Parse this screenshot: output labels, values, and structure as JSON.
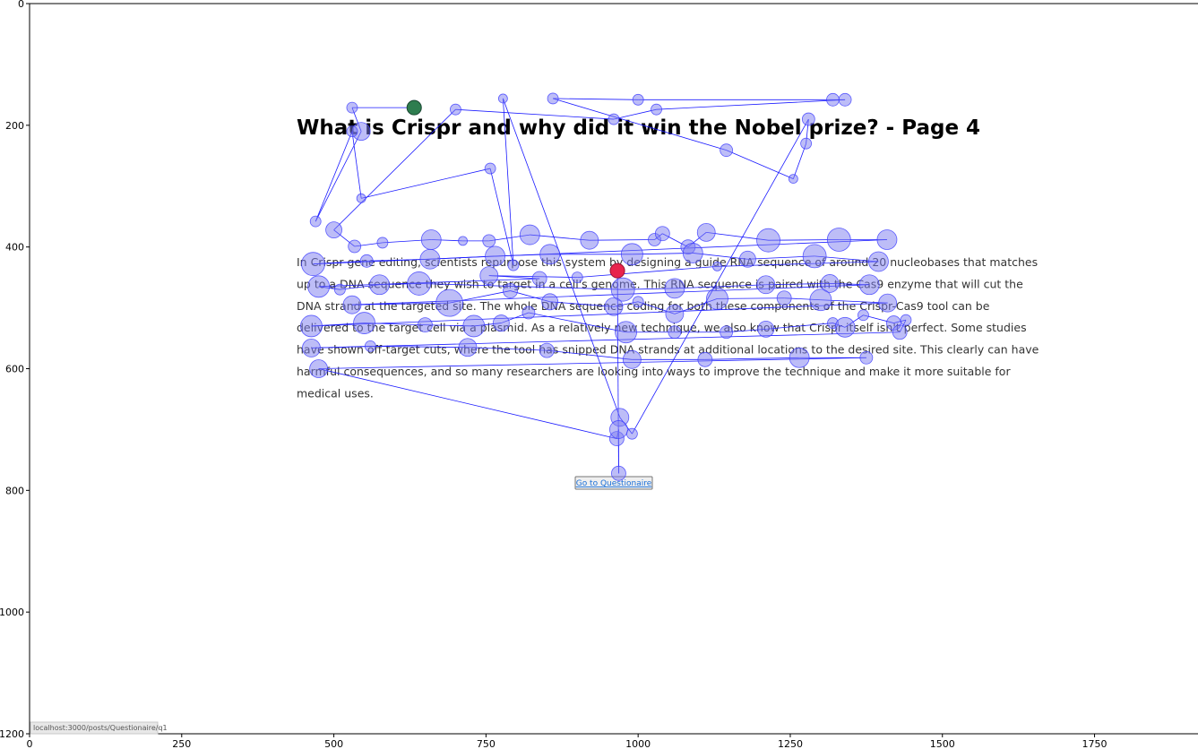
{
  "page": {
    "title": "What is Crispr and why did it win the Nobel prize? - Page 4",
    "paragraph": [
      "In Crispr gene editing, scientists repurpose this system by designing a guide RNA sequence of around 20 nucleobases that matches",
      "up to a DNA sequence they wish to target in a cell's genome. This RNA sequence is paired with the Cas9 enzyme that will cut the",
      "DNA strand at the targeted site. The whole DNA sequence coding for both these components of the Crispr-Cas9 tool can be",
      "delivered to the target cell via a plasmid. As a relatively new technique, we also know that Crispr itself isn't perfect. Some studies",
      "have shown off-target cuts, where the tool has snipped DNA strands at additional locations to the desired site. This clearly can have",
      "harmful consequences, and so many researchers are looking into ways to improve the technique and make it more suitable for",
      "medical uses."
    ],
    "button_label": "Go to Questionaire",
    "status_url": "localhost:3000/posts/Questionaire/q1"
  },
  "colors": {
    "fixation_fill": "#7b7bef",
    "fixation_stroke": "#3a3aff",
    "scanpath": "#1a1aff",
    "start_point": "#2e7d4f",
    "end_point": "#e8244d"
  },
  "chart_data": {
    "type": "scatter",
    "title": "",
    "xlabel": "",
    "ylabel": "",
    "xlim": [
      0,
      1920
    ],
    "ylim": [
      1200,
      0
    ],
    "x_ticks": [
      0,
      250,
      500,
      750,
      1000,
      1250,
      1500,
      1750
    ],
    "y_ticks": [
      0,
      200,
      400,
      600,
      800,
      1000,
      1200
    ],
    "start_point": {
      "x": 632,
      "y": 171
    },
    "end_point": {
      "x": 966,
      "y": 439
    },
    "series": [
      {
        "points": [
          {
            "x": 632,
            "y": 171,
            "r": 8
          },
          {
            "x": 530,
            "y": 171,
            "r": 6
          },
          {
            "x": 545,
            "y": 210,
            "r": 10
          },
          {
            "x": 470,
            "y": 358,
            "r": 6
          },
          {
            "x": 530,
            "y": 210,
            "r": 6
          },
          {
            "x": 545,
            "y": 320,
            "r": 5
          },
          {
            "x": 757,
            "y": 271,
            "r": 6
          },
          {
            "x": 795,
            "y": 430,
            "r": 6
          },
          {
            "x": 778,
            "y": 156,
            "r": 5
          },
          {
            "x": 970,
            "y": 680,
            "r": 10
          },
          {
            "x": 990,
            "y": 707,
            "r": 6
          },
          {
            "x": 1280,
            "y": 190,
            "r": 7
          },
          {
            "x": 1276,
            "y": 230,
            "r": 6
          },
          {
            "x": 1255,
            "y": 288,
            "r": 5
          },
          {
            "x": 1145,
            "y": 241,
            "r": 7
          },
          {
            "x": 860,
            "y": 156,
            "r": 6
          },
          {
            "x": 1000,
            "y": 158,
            "r": 6
          },
          {
            "x": 1320,
            "y": 158,
            "r": 7
          },
          {
            "x": 1340,
            "y": 158,
            "r": 7
          },
          {
            "x": 1030,
            "y": 174,
            "r": 6
          },
          {
            "x": 960,
            "y": 190,
            "r": 6
          },
          {
            "x": 700,
            "y": 174,
            "r": 6
          },
          {
            "x": 500,
            "y": 372,
            "r": 9
          },
          {
            "x": 534,
            "y": 399,
            "r": 7
          },
          {
            "x": 580,
            "y": 393,
            "r": 6
          },
          {
            "x": 660,
            "y": 388,
            "r": 11
          },
          {
            "x": 712,
            "y": 390,
            "r": 5
          },
          {
            "x": 755,
            "y": 390,
            "r": 7
          },
          {
            "x": 822,
            "y": 380,
            "r": 11
          },
          {
            "x": 920,
            "y": 389,
            "r": 10
          },
          {
            "x": 1027,
            "y": 388,
            "r": 7
          },
          {
            "x": 1040,
            "y": 378,
            "r": 8
          },
          {
            "x": 1082,
            "y": 400,
            "r": 8
          },
          {
            "x": 1112,
            "y": 376,
            "r": 10
          },
          {
            "x": 1214,
            "y": 389,
            "r": 13
          },
          {
            "x": 1330,
            "y": 388,
            "r": 13
          },
          {
            "x": 1409,
            "y": 388,
            "r": 11
          },
          {
            "x": 466,
            "y": 428,
            "r": 13
          },
          {
            "x": 554,
            "y": 423,
            "r": 7
          },
          {
            "x": 658,
            "y": 420,
            "r": 11
          },
          {
            "x": 765,
            "y": 415,
            "r": 11
          },
          {
            "x": 855,
            "y": 412,
            "r": 11
          },
          {
            "x": 990,
            "y": 412,
            "r": 12
          },
          {
            "x": 1090,
            "y": 410,
            "r": 11
          },
          {
            "x": 1180,
            "y": 420,
            "r": 9
          },
          {
            "x": 1290,
            "y": 415,
            "r": 13
          },
          {
            "x": 1395,
            "y": 424,
            "r": 11
          },
          {
            "x": 1130,
            "y": 432,
            "r": 5
          },
          {
            "x": 900,
            "y": 450,
            "r": 6
          },
          {
            "x": 755,
            "y": 447,
            "r": 10
          },
          {
            "x": 838,
            "y": 452,
            "r": 8
          },
          {
            "x": 475,
            "y": 465,
            "r": 12
          },
          {
            "x": 510,
            "y": 470,
            "r": 6
          },
          {
            "x": 575,
            "y": 462,
            "r": 11
          },
          {
            "x": 640,
            "y": 460,
            "r": 13
          },
          {
            "x": 975,
            "y": 470,
            "r": 13
          },
          {
            "x": 1060,
            "y": 468,
            "r": 11
          },
          {
            "x": 1210,
            "y": 462,
            "r": 10
          },
          {
            "x": 1315,
            "y": 460,
            "r": 10
          },
          {
            "x": 1380,
            "y": 462,
            "r": 11
          },
          {
            "x": 530,
            "y": 495,
            "r": 10
          },
          {
            "x": 690,
            "y": 492,
            "r": 15
          },
          {
            "x": 790,
            "y": 472,
            "r": 8
          },
          {
            "x": 855,
            "y": 490,
            "r": 9
          },
          {
            "x": 960,
            "y": 498,
            "r": 10
          },
          {
            "x": 1000,
            "y": 490,
            "r": 6
          },
          {
            "x": 1060,
            "y": 510,
            "r": 10
          },
          {
            "x": 1130,
            "y": 485,
            "r": 12
          },
          {
            "x": 1240,
            "y": 484,
            "r": 8
          },
          {
            "x": 1300,
            "y": 487,
            "r": 12
          },
          {
            "x": 1410,
            "y": 492,
            "r": 10
          },
          {
            "x": 463,
            "y": 530,
            "r": 12
          },
          {
            "x": 550,
            "y": 525,
            "r": 12
          },
          {
            "x": 650,
            "y": 528,
            "r": 8
          },
          {
            "x": 730,
            "y": 530,
            "r": 12
          },
          {
            "x": 775,
            "y": 525,
            "r": 9
          },
          {
            "x": 820,
            "y": 508,
            "r": 7
          },
          {
            "x": 980,
            "y": 540,
            "r": 12
          },
          {
            "x": 1060,
            "y": 540,
            "r": 7
          },
          {
            "x": 1145,
            "y": 540,
            "r": 7
          },
          {
            "x": 1210,
            "y": 535,
            "r": 9
          },
          {
            "x": 1320,
            "y": 525,
            "r": 6
          },
          {
            "x": 1340,
            "y": 532,
            "r": 11
          },
          {
            "x": 1370,
            "y": 512,
            "r": 6
          },
          {
            "x": 1420,
            "y": 525,
            "r": 8
          },
          {
            "x": 1440,
            "y": 520,
            "r": 6
          },
          {
            "x": 1430,
            "y": 540,
            "r": 8
          },
          {
            "x": 463,
            "y": 566,
            "r": 10
          },
          {
            "x": 560,
            "y": 563,
            "r": 6
          },
          {
            "x": 720,
            "y": 565,
            "r": 10
          },
          {
            "x": 850,
            "y": 570,
            "r": 8
          },
          {
            "x": 990,
            "y": 585,
            "r": 10
          },
          {
            "x": 1110,
            "y": 585,
            "r": 8
          },
          {
            "x": 1265,
            "y": 582,
            "r": 11
          },
          {
            "x": 1375,
            "y": 582,
            "r": 7
          },
          {
            "x": 475,
            "y": 600,
            "r": 10
          },
          {
            "x": 965,
            "y": 715,
            "r": 8
          },
          {
            "x": 968,
            "y": 700,
            "r": 10
          },
          {
            "x": 968,
            "y": 772,
            "r": 8
          },
          {
            "x": 966,
            "y": 439,
            "r": 8
          }
        ]
      }
    ]
  }
}
